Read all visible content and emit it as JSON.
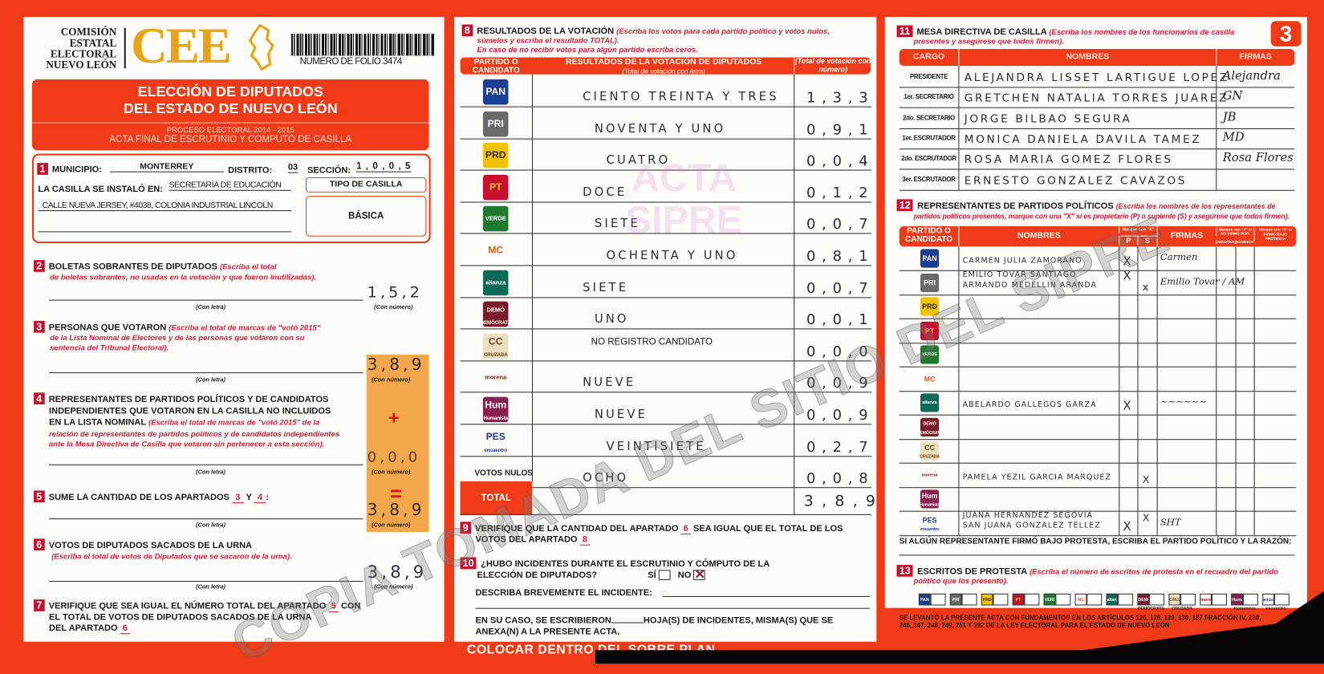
{
  "header": {
    "org_name": [
      "COMISIÓN",
      "ESTATAL",
      "ELECTORAL",
      "NUEVO LEÓN"
    ],
    "logo_text": "CEE",
    "folio": "NUMERO DE FOLIO 3474",
    "sheet_number": "3",
    "title_line1": "ELECCIÓN DE DIPUTADOS",
    "title_line2": "DEL ESTADO DE NUEVO LEÓN",
    "process": "PROCESO ELECTORAL  2014 - 2015",
    "subtitle": "ACTA FINAL DE ESCRUTINIO Y COMPUTO DE CASILLA"
  },
  "colors": {
    "brand_red": "#ef3b17",
    "section_badge": "#c8102e",
    "logo_gold": "#e8a317",
    "sum_column": "#f4a64a"
  },
  "section1": {
    "num": "1",
    "municipio_label": "MUNICIPIO:",
    "municipio": "MONTERREY",
    "distrito_label": "DISTRITO:",
    "distrito": "03",
    "seccion_label": "SECCIÓN:",
    "seccion": "1 , 0 , 0 , 5",
    "installed_label": "LA CASILLA SE INSTALÓ EN:",
    "installed_place": "SECRETARÍA DE EDUCACIÓN",
    "address": "CALLE NUEVA JERSEY, #4038, COLONIA INDUSTRIAL LINCOLN",
    "tipo_label": "TIPO DE CASILLA",
    "tipo": "BÁSICA"
  },
  "labels": {
    "con_letra": "(Con letra)",
    "con_numero": "(Con número)"
  },
  "section2": {
    "num": "2",
    "title": "BOLETAS SOBRANTES DE DIPUTADOS",
    "hint1": "(Escriba el total",
    "hint2": "de boletas sobrantes, no usadas en la votación y que fueron inutilizadas).",
    "value": "1,5,2"
  },
  "section3": {
    "num": "3",
    "title": "PERSONAS QUE VOTARON",
    "hint1": "(Escriba el total de marcas de \"votó 2015\"",
    "hint2": "de la Lista Nominal de Electores y de las personas que votaron con su",
    "hint3": "sentencia del Tribunal Electoral).",
    "value": "3,8,9"
  },
  "section4": {
    "num": "4",
    "title1": "REPRESENTANTES DE PARTIDOS POLÍTICOS Y DE CANDIDATOS",
    "title2": "INDEPENDIENTES QUE VOTARON EN LA CASILLA NO INCLUIDOS",
    "title3": "EN LA LISTA NOMINAL",
    "hint1": "(Escriba el total de marcas de \"votó 2015\" de la",
    "hint2": "relación de representantes de partidos políticos y de candidatos independientes",
    "hint3": "ante la Mesa Directiva de Casilla que votaron sin pertenecer a esta sección).",
    "plus": "+",
    "value": "0,0,0"
  },
  "section5": {
    "num": "5",
    "title": "SUME LA CANTIDAD DE LOS APARTADOS",
    "a": "3",
    "y": "Y",
    "b": "4",
    "colon": ":",
    "equals": "=",
    "value": "3,8,9"
  },
  "section6": {
    "num": "6",
    "title": "VOTOS DE DIPUTADOS SACADOS DE LA URNA",
    "hint": "(Escriba el total de votos de Diputados que se sacaron de la urna).",
    "value": "3,8,9"
  },
  "section7": {
    "num": "7",
    "line1": "VERIFIQUE QUE SEA IGUAL EL NÚMERO TOTAL DEL APARTADO",
    "ref1": "5",
    "con": "CON",
    "line2": "EL TOTAL DE VOTOS DE DIPUTADOS SACADOS DE LA URNA",
    "line3": "DEL APARTADO",
    "ref2": "6"
  },
  "section8": {
    "num": "8",
    "title": "RESULTADOS DE LA VOTACIÓN",
    "hint1": "(Escriba los votos para cada partido político y votos nulos,",
    "hint2": "súmelos y escriba el resultado TOTAL).",
    "hint3": "En caso de no recibir votos para algún partido escriba ceros.",
    "col_party": "PARTIDO O CANDIDATO",
    "col_letter": "RESULTADOS DE LA VOTACIÓN DE DIPUTADOS",
    "col_letter_sub": "(Total de votación con letra)",
    "col_number": "(Total de votación con número)",
    "rows": [
      {
        "party": "PAN",
        "letter": "CIENTO TREINTA Y TRES",
        "number": "1 , 3 , 3"
      },
      {
        "party": "PRI",
        "letter": "NOVENTA Y UNO",
        "number": "0 , 9 , 1"
      },
      {
        "party": "PRD",
        "letter": "CUATRO",
        "number": "0 , 0 , 4"
      },
      {
        "party": "PT",
        "letter": "DOCE",
        "number": "0 , 1 , 2"
      },
      {
        "party": "VERDE",
        "letter": "SIETE",
        "number": "0 , 0 , 7"
      },
      {
        "party": "MC",
        "letter": "OCHENTA Y UNO",
        "number": "0 , 8 , 1"
      },
      {
        "party": "alianza",
        "letter": "SIETE",
        "number": "0 , 0 , 7"
      },
      {
        "party": "DEMÓCRATA",
        "letter": "UNO",
        "number": "0 , 0 , 1"
      },
      {
        "party": "CRUZADA",
        "printed": "NO REGISTRO CANDIDATO",
        "letter": "",
        "number": "0 , 0 , 0"
      },
      {
        "party": "morena",
        "letter": "NUEVE",
        "number": "0 , 0 , 9"
      },
      {
        "party": "Humanista",
        "letter": "NUEVE",
        "number": "0 , 0 , 9"
      },
      {
        "party": "encuentro",
        "letter": "VEINTISIETE",
        "number": "0 , 2 , 7"
      },
      {
        "party": "VOTOS NULOS",
        "letter": "OCHO",
        "number": "0 , 0 , 8"
      }
    ],
    "total_label": "TOTAL",
    "total": "3 , 8 , 9",
    "watermark": [
      "ACTA",
      "SIPRE"
    ]
  },
  "section9": {
    "num": "9",
    "line1": "VERIFIQUE QUE LA CANTIDAD DEL APARTADO",
    "ref1": "6",
    "mid": "SEA IGUAL QUE EL TOTAL DE LOS",
    "line2": "VOTOS DEL APARTADO",
    "ref2": "8"
  },
  "section10": {
    "num": "10",
    "line1": "¿HUBO INCIDENTES DURANTE EL ESCRUTINIO Y CÓMPUTO DE LA",
    "line2": "ELECCIÓN DE DIPUTADOS?",
    "si": "SÍ",
    "no": "NO",
    "answer": "NO",
    "describe": "DESCRIBA BREVEMENTE EL INCIDENTE:",
    "sheets1": "EN SU CASO, SE ESCRIBIERON",
    "sheets2": "HOJA(S) DE INCIDENTES, MISMA(S) QUE SE",
    "sheets3": "ANEXA(N) A LA PRESENTE ACTA."
  },
  "section11": {
    "num": "11",
    "title": "MESA DIRECTIVA DE CASILLA",
    "hint1": "(Escriba los nombres de los funcionarios de casilla",
    "hint2": "presentes y asegúrese que todos firmen).",
    "col_cargo": "CARGO",
    "col_names": "NOMBRES",
    "col_sign": "FIRMAS",
    "rows": [
      {
        "cargo": "PRESIDENTE",
        "name": "ALEJANDRA LISSET LARTIGUE LOPEZ",
        "signature": "Alejandra"
      },
      {
        "cargo": "1er. SECRETARIO",
        "name": "GRETCHEN NATALIA TORRES JUAREZ",
        "signature": "GN"
      },
      {
        "cargo": "2do. SECRETARIO",
        "name": "JORGE BILBAO SEGURA",
        "signature": "JB"
      },
      {
        "cargo": "1er. ESCRUTADOR",
        "name": "MONICA DANIELA DAVILA TAMEZ",
        "signature": "MD"
      },
      {
        "cargo": "2do. ESCRUTADOR",
        "name": "ROSA MARIA GOMEZ FLORES",
        "signature": "Rosa Flores"
      },
      {
        "cargo": "3er. ESCRUTADOR",
        "name": "ERNESTO GONZALEZ CAVAZOS",
        "signature": ""
      }
    ]
  },
  "section12": {
    "num": "12",
    "title": "REPRESENTANTES DE PARTIDOS POLÍTICOS",
    "hint1": "(Escriba los nombres de los representantes de",
    "hint2": "partidos políticos presentes, marque con una \"X\" si es propietario (P) o suplente (S) y asegúrese que todos firmen).",
    "col_party": "PARTIDO O CANDIDATO",
    "col_names": "NOMBRES",
    "col_mark": "Marque con \"X\"",
    "col_p": "P",
    "col_s": "S",
    "col_sign": "FIRMAS",
    "col_nosign": "Marque con \"X\" si NO FIRMÓ POR:",
    "col_negativa": "NEGATIVA",
    "col_ausencia": "AUSENCIA",
    "col_protest": "Marque con \"X\" si FIRMÓ BAJO PROTESTA",
    "rows": [
      {
        "party": "PAN",
        "lines": [
          {
            "name": "CARMEN JULIA ZAMORANO",
            "p": "X",
            "s": ""
          }
        ],
        "signature": "Carmen"
      },
      {
        "party": "PRI",
        "lines": [
          {
            "name": "EMILIO TOVAR SANTIAGO",
            "p": "X",
            "s": ""
          },
          {
            "name": "ARMANDO MEDELLIN ARANDA",
            "p": "",
            "s": "x"
          }
        ],
        "signature": "Emilio Tovar / AM"
      },
      {
        "party": "PRD",
        "lines": [],
        "signature": ""
      },
      {
        "party": "PT",
        "lines": [],
        "signature": ""
      },
      {
        "party": "VERDE",
        "lines": [],
        "signature": ""
      },
      {
        "party": "MC",
        "lines": [],
        "signature": ""
      },
      {
        "party": "alianza",
        "lines": [
          {
            "name": "ABELARDO GALLEGOS GARZA",
            "p": "X",
            "s": ""
          }
        ],
        "signature": "~~~~~~"
      },
      {
        "party": "DEMÓCRATA",
        "lines": [],
        "signature": ""
      },
      {
        "party": "CRUZADA",
        "lines": [],
        "signature": ""
      },
      {
        "party": "morena",
        "lines": [
          {
            "name": "PAMELA YEZIL GARCIA MARQUEZ",
            "p": "",
            "s": "X"
          }
        ],
        "signature": ""
      },
      {
        "party": "Humanista",
        "lines": [],
        "signature": ""
      },
      {
        "party": "encuentro",
        "lines": [
          {
            "name": "JUANA HERNANDEZ SEGOVIA",
            "p": "",
            "s": "X"
          },
          {
            "name": "SAN JUANA GONZALEZ TELLEZ",
            "p": "X",
            "s": ""
          }
        ],
        "signature": "SHT"
      }
    ],
    "protest_note": "SI ALGÚN REPRESENTANTE FIRMÓ BAJO PROTESTA, ESCRIBA EL PARTIDO POLÍTICO Y LA RAZÓN:"
  },
  "section13": {
    "num": "13",
    "title": "ESCRITOS DE PROTESTA",
    "hint1": "(Escriba el número de escritos de protesta en el recuadro del partido",
    "hint2": "político que los presentó).",
    "parties": [
      "PAN",
      "PRI",
      "PRD",
      "PT",
      "VERDE",
      "MC",
      "alianza",
      "DEMÓCRATA",
      "CRUZADA",
      "morena",
      "Humanista",
      "encuentro"
    ],
    "legal1": "SE LEVANTÓ LA PRESENTE ACTA CON FUNDAMENTOS EN LOS ARTÍCULOS 126, 128, 129, 130, 187 FRACCIÓN IV, 238,",
    "legal2": "246, 247, 248, 249, 251 Y 292 DE LA LEY ELECTORAL PARA EL ESTADO DE NUEVO LEÓN"
  },
  "footer": {
    "instruction": "COLOCAR DENTRO DEL SOBRE PLAN"
  },
  "watermark": "COPIA TOMADA DEL SITIO DEL SIPRE",
  "party_styles": {
    "PAN": {
      "label": "PAN",
      "bg": "#1b3f94",
      "fg": "#ffffff"
    },
    "PRI": {
      "label": "PRI",
      "bg": "#6a6a6a",
      "fg": "#ffffff"
    },
    "PRD": {
      "label": "PRD",
      "bg": "#f2c200",
      "fg": "#3a2a00"
    },
    "PT": {
      "label": "PT",
      "bg": "#c8102e",
      "fg": "#f5d000"
    },
    "VERDE": {
      "label": "VERDE",
      "bg": "#1f7a2e",
      "fg": "#ffffff"
    },
    "MC": {
      "label": "MC",
      "bg": "#ffffff",
      "fg": "#e05a1a"
    },
    "alianza": {
      "label": "alianza",
      "bg": "#0e6b5a",
      "fg": "#ffffff"
    },
    "DEMÓCRATA": {
      "label": "DEMÓ",
      "bg": "#7a1c2a",
      "fg": "#ffffff"
    },
    "CRUZADA": {
      "label": "CC",
      "bg": "#e8e0c0",
      "fg": "#7a3a10"
    },
    "morena": {
      "label": "morena",
      "bg": "transparent",
      "fg": "#8a1a1a"
    },
    "Humanista": {
      "label": "Hum",
      "bg": "#8a2050",
      "fg": "#ffffff"
    },
    "encuentro": {
      "label": "PES",
      "bg": "transparent",
      "fg": "#1a3a8a"
    }
  }
}
